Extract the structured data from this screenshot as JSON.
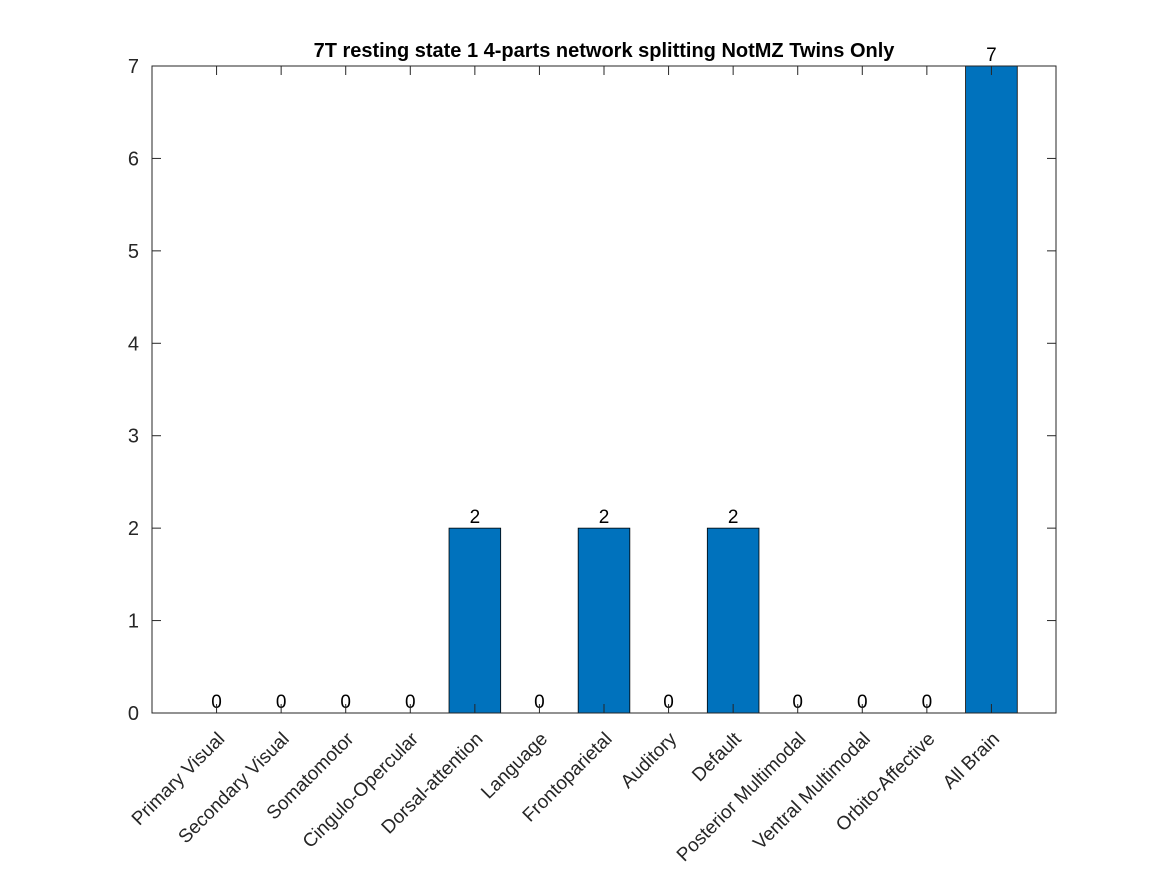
{
  "chart_data": {
    "type": "bar",
    "title": "7T resting state 1 4-parts network splitting NotMZ Twins Only",
    "xlabel": "",
    "ylabel": "",
    "categories": [
      "Primary Visual",
      "Secondary Visual",
      "Somatomotor",
      "Cingulo-Opercular",
      "Dorsal-attention",
      "Language",
      "Frontoparietal",
      "Auditory",
      "Default",
      "Posterior Multimodal",
      "Ventral Multimodal",
      "Orbito-Affective",
      "All Brain"
    ],
    "values": [
      0,
      0,
      0,
      0,
      2,
      0,
      2,
      0,
      2,
      0,
      0,
      0,
      7
    ],
    "data_labels": [
      "0",
      "0",
      "0",
      "0",
      "2",
      "0",
      "2",
      "0",
      "2",
      "0",
      "0",
      "0",
      "7"
    ],
    "ylim": [
      0,
      7
    ],
    "yticks": [
      "0",
      "1",
      "2",
      "3",
      "4",
      "5",
      "6",
      "7"
    ],
    "grid": false,
    "bar_color": "#0072BD",
    "legend": "none"
  }
}
